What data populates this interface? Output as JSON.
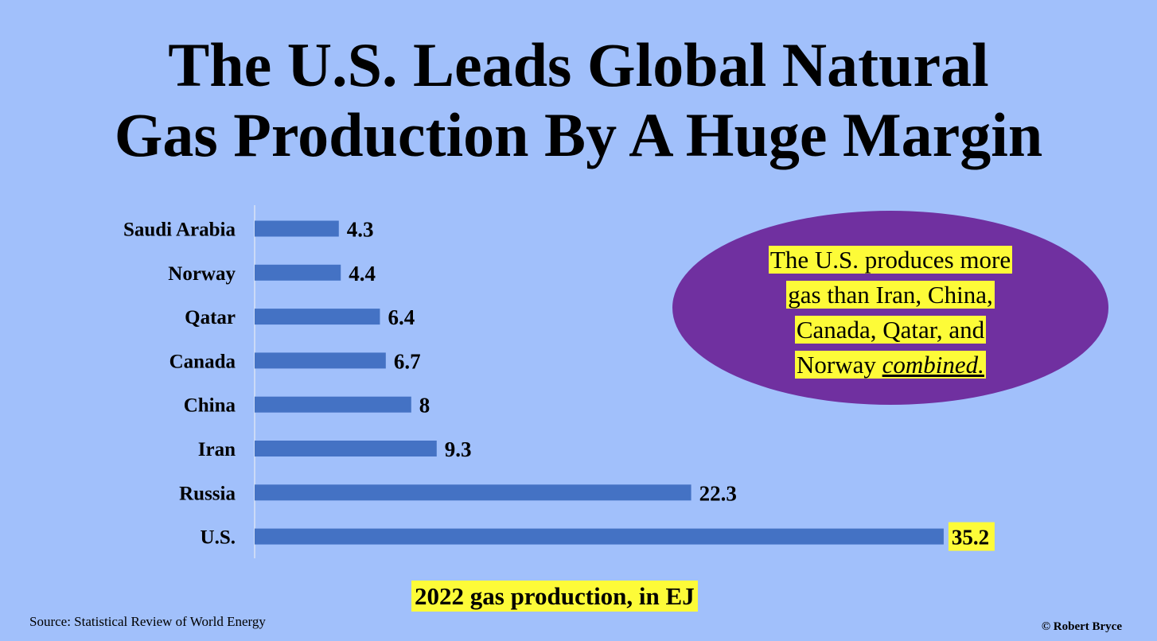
{
  "header": {
    "title_line1": "The U.S. Leads Global Natural",
    "title_line2": "Gas Production By A Huge Margin"
  },
  "callout": {
    "line1": "The U.S. produces more",
    "line2": "gas than Iran, China,",
    "line3": "Canada, Qatar, and",
    "line4_prefix": "Norway",
    "line4_emphasis": "combined."
  },
  "footer": {
    "source": "Source: Statistical Review of World Energy",
    "credit": "© Robert Bryce"
  },
  "chart_data": {
    "type": "bar",
    "orientation": "horizontal",
    "categories": [
      "Saudi Arabia",
      "Norway",
      "Qatar",
      "Canada",
      "China",
      "Iran",
      "Russia",
      "U.S."
    ],
    "values": [
      4.3,
      4.4,
      6.4,
      6.7,
      8,
      9.3,
      22.3,
      35.2
    ],
    "value_labels": [
      "4.3",
      "4.4",
      "6.4",
      "6.7",
      "8",
      "9.3",
      "22.3",
      "35.2"
    ],
    "highlighted_category": "U.S.",
    "xlabel": "2022 gas production, in EJ",
    "xlim": [
      0,
      36
    ],
    "grid": false,
    "legend": "none",
    "bar_color": "#4472c4",
    "highlight_color": "#fdfb38",
    "background_color": "#a1c0fb",
    "callout_color": "#7030a0"
  }
}
